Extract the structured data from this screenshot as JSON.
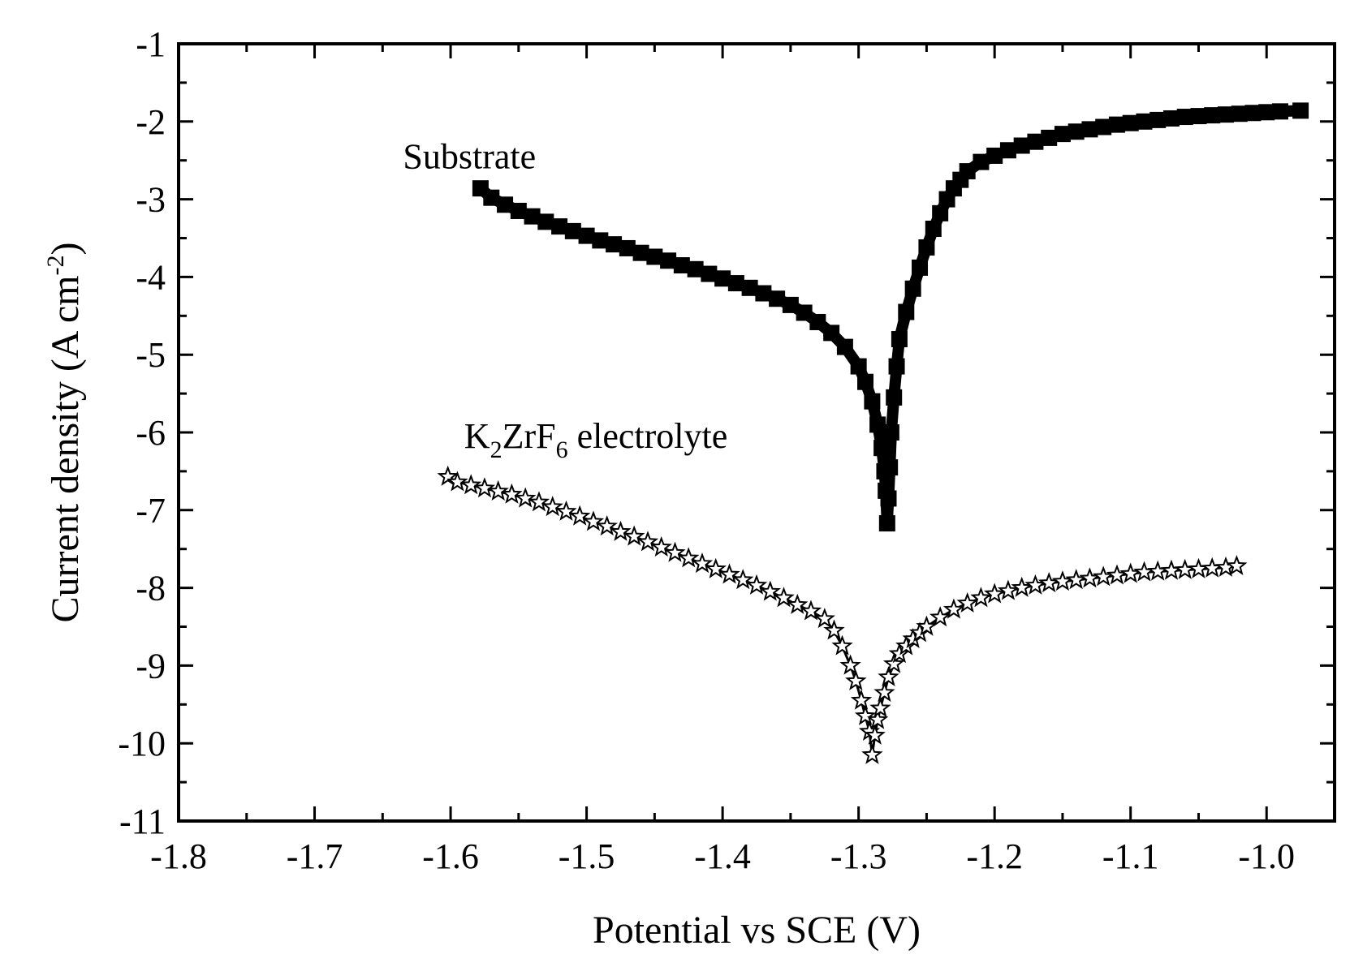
{
  "chart_data": {
    "type": "scatter",
    "title": "",
    "xlabel": "Potential vs SCE (V)",
    "ylabel": {
      "main": "Current density (A cm",
      "sup": "-2",
      "close": ")"
    },
    "xlim": [
      -1.8,
      -0.95
    ],
    "ylim": [
      -11,
      -1
    ],
    "xticks": [
      -1.8,
      -1.7,
      -1.6,
      -1.5,
      -1.4,
      -1.3,
      -1.2,
      -1.1,
      -1.0
    ],
    "xtick_labels": [
      "-1.8",
      "-1.7",
      "-1.6",
      "-1.5",
      "-1.4",
      "-1.3",
      "-1.2",
      "-1.1",
      "-1.0"
    ],
    "yticks": [
      -1,
      -2,
      -3,
      -4,
      -5,
      -6,
      -7,
      -8,
      -9,
      -10,
      -11
    ],
    "ytick_labels": [
      "-1",
      "-2",
      "-3",
      "-4",
      "-5",
      "-6",
      "-7",
      "-8",
      "-9",
      "-10",
      "-11"
    ],
    "grid": false,
    "series": [
      {
        "name": "Substrate",
        "marker": "square",
        "color": "#000000",
        "x": [
          -1.578,
          -1.57,
          -1.56,
          -1.55,
          -1.54,
          -1.53,
          -1.52,
          -1.51,
          -1.5,
          -1.49,
          -1.48,
          -1.47,
          -1.46,
          -1.45,
          -1.44,
          -1.43,
          -1.42,
          -1.41,
          -1.4,
          -1.39,
          -1.38,
          -1.37,
          -1.36,
          -1.35,
          -1.34,
          -1.33,
          -1.32,
          -1.31,
          -1.3,
          -1.295,
          -1.29,
          -1.286,
          -1.283,
          -1.281,
          -1.28,
          -1.279,
          -1.278,
          -1.277,
          -1.276,
          -1.274,
          -1.272,
          -1.27,
          -1.265,
          -1.26,
          -1.255,
          -1.25,
          -1.245,
          -1.24,
          -1.235,
          -1.23,
          -1.225,
          -1.22,
          -1.21,
          -1.2,
          -1.19,
          -1.18,
          -1.17,
          -1.16,
          -1.15,
          -1.14,
          -1.13,
          -1.12,
          -1.11,
          -1.1,
          -1.09,
          -1.08,
          -1.07,
          -1.06,
          -1.05,
          -1.04,
          -1.03,
          -1.02,
          -1.01,
          -1.0,
          -0.99,
          -0.975
        ],
        "y": [
          -2.86,
          -2.98,
          -3.07,
          -3.15,
          -3.22,
          -3.29,
          -3.35,
          -3.41,
          -3.47,
          -3.53,
          -3.58,
          -3.63,
          -3.69,
          -3.74,
          -3.79,
          -3.85,
          -3.9,
          -3.96,
          -4.02,
          -4.08,
          -4.14,
          -4.21,
          -4.28,
          -4.36,
          -4.46,
          -4.58,
          -4.72,
          -4.9,
          -5.15,
          -5.35,
          -5.6,
          -5.9,
          -6.2,
          -6.5,
          -6.75,
          -7.17,
          -6.85,
          -6.45,
          -6.0,
          -5.55,
          -5.15,
          -4.8,
          -4.45,
          -4.15,
          -3.88,
          -3.62,
          -3.38,
          -3.18,
          -3.0,
          -2.86,
          -2.75,
          -2.64,
          -2.52,
          -2.44,
          -2.37,
          -2.31,
          -2.26,
          -2.21,
          -2.16,
          -2.13,
          -2.1,
          -2.07,
          -2.04,
          -2.02,
          -2.0,
          -1.98,
          -1.96,
          -1.94,
          -1.93,
          -1.92,
          -1.91,
          -1.9,
          -1.89,
          -1.88,
          -1.87,
          -1.86
        ]
      },
      {
        "name": "K2ZrF6 electrolyte",
        "label_parts": [
          "K",
          "2",
          "ZrF",
          "6",
          " electrolyte"
        ],
        "marker": "star",
        "color": "#000000",
        "x": [
          -1.602,
          -1.595,
          -1.585,
          -1.575,
          -1.565,
          -1.555,
          -1.545,
          -1.535,
          -1.525,
          -1.515,
          -1.505,
          -1.495,
          -1.485,
          -1.475,
          -1.465,
          -1.455,
          -1.445,
          -1.435,
          -1.425,
          -1.415,
          -1.405,
          -1.395,
          -1.385,
          -1.375,
          -1.365,
          -1.355,
          -1.345,
          -1.335,
          -1.325,
          -1.318,
          -1.312,
          -1.306,
          -1.302,
          -1.298,
          -1.295,
          -1.292,
          -1.29,
          -1.288,
          -1.286,
          -1.284,
          -1.281,
          -1.278,
          -1.274,
          -1.27,
          -1.265,
          -1.26,
          -1.255,
          -1.25,
          -1.24,
          -1.23,
          -1.22,
          -1.21,
          -1.2,
          -1.19,
          -1.18,
          -1.17,
          -1.16,
          -1.15,
          -1.14,
          -1.13,
          -1.12,
          -1.11,
          -1.1,
          -1.09,
          -1.08,
          -1.07,
          -1.06,
          -1.05,
          -1.04,
          -1.03,
          -1.022
        ],
        "y": [
          -6.57,
          -6.64,
          -6.68,
          -6.72,
          -6.76,
          -6.8,
          -6.85,
          -6.9,
          -6.96,
          -7.02,
          -7.08,
          -7.15,
          -7.21,
          -7.28,
          -7.34,
          -7.41,
          -7.48,
          -7.55,
          -7.62,
          -7.69,
          -7.76,
          -7.83,
          -7.9,
          -7.97,
          -8.05,
          -8.13,
          -8.22,
          -8.3,
          -8.4,
          -8.55,
          -8.75,
          -9.0,
          -9.2,
          -9.45,
          -9.65,
          -9.85,
          -10.15,
          -9.9,
          -9.7,
          -9.55,
          -9.35,
          -9.15,
          -8.98,
          -8.85,
          -8.75,
          -8.66,
          -8.58,
          -8.5,
          -8.38,
          -8.28,
          -8.2,
          -8.13,
          -8.08,
          -8.04,
          -8.0,
          -7.97,
          -7.94,
          -7.92,
          -7.9,
          -7.88,
          -7.86,
          -7.84,
          -7.82,
          -7.8,
          -7.79,
          -7.78,
          -7.77,
          -7.76,
          -7.75,
          -7.74,
          -7.72
        ]
      }
    ],
    "annotations": [
      {
        "text": "Substrate",
        "x": -1.635,
        "y": -2.6
      },
      {
        "text": "K2ZrF6 electrolyte",
        "x": -1.59,
        "y": -6.2
      }
    ]
  }
}
